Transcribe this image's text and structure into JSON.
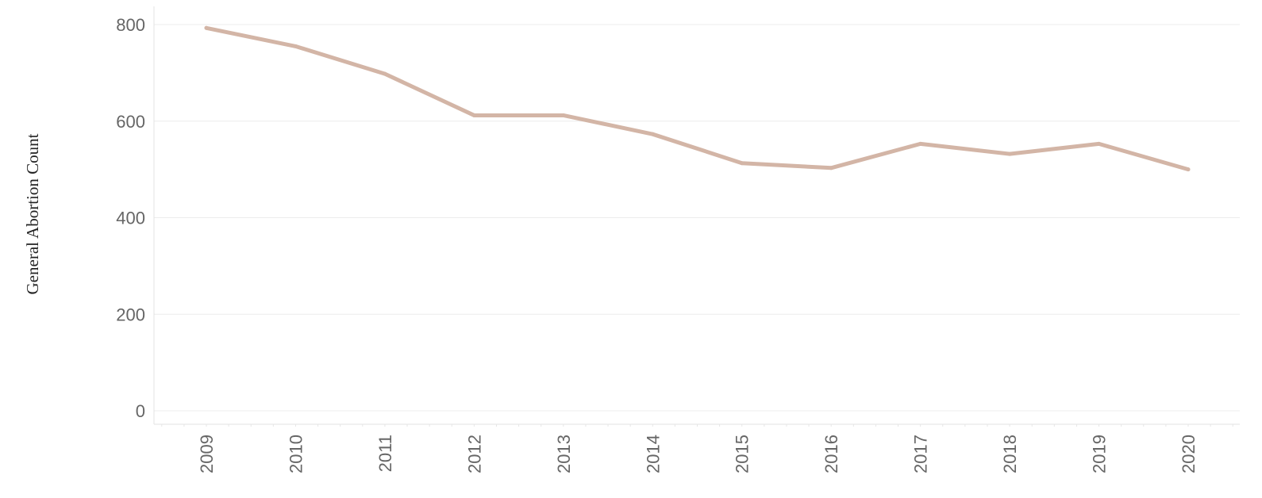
{
  "chart_data": {
    "type": "line",
    "title": "",
    "xlabel": "",
    "ylabel": "General Abortion Count",
    "x": [
      "2009",
      "2010",
      "2011",
      "2012",
      "2013",
      "2014",
      "2015",
      "2016",
      "2017",
      "2018",
      "2019",
      "2020"
    ],
    "series": [
      {
        "values": [
          793,
          755,
          698,
          612,
          612,
          573,
          513,
          503,
          553,
          532,
          553,
          500
        ],
        "color": "#d3b5a6"
      }
    ],
    "yticks": [
      0,
      200,
      400,
      600,
      800
    ],
    "ylim": [
      0,
      800
    ],
    "grid": true,
    "legend": "none"
  }
}
